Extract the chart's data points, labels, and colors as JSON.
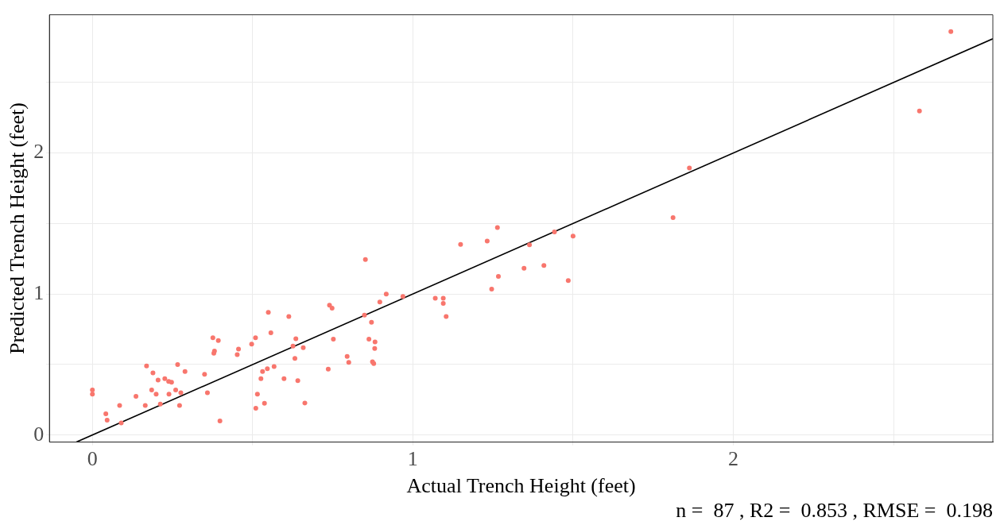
{
  "chart_data": {
    "type": "scatter",
    "xlabel": "Actual Trench Height (feet)",
    "ylabel": "Predicted Trench Height (feet)",
    "annotations": [
      "n =  87 , R2 =  0.853 , RMSE =  0.198"
    ],
    "xlim": [
      -0.134,
      2.81
    ],
    "ylim": [
      -0.05,
      2.98
    ],
    "xticks": [
      0,
      {
        "value": 0.5,
        "label": null
      },
      1,
      {
        "value": 1.5,
        "label": null
      },
      2,
      {
        "value": 2.5,
        "label": null
      }
    ],
    "yticks": [
      0,
      {
        "value": 0.5,
        "label": null
      },
      1,
      {
        "value": 1.5,
        "label": null
      },
      2,
      {
        "value": 2.5,
        "label": null
      }
    ],
    "grid": true,
    "series": [
      {
        "type": "scatter",
        "marker": "circle",
        "color": "#f8766d",
        "x": [
          0,
          0,
          0.042,
          0.046,
          0.085,
          0.09,
          0.136,
          0.165,
          0.169,
          0.185,
          0.189,
          0.199,
          0.205,
          0.212,
          0.226,
          0.238,
          0.247,
          0.239,
          0.26,
          0.266,
          0.272,
          0.276,
          0.289,
          0.35,
          0.359,
          0.376,
          0.393,
          0.381,
          0.379,
          0.398,
          0.452,
          0.456,
          0.497,
          0.509,
          0.51,
          0.515,
          0.526,
          0.531,
          0.537,
          0.546,
          0.557,
          0.567,
          0.598,
          0.626,
          0.632,
          0.635,
          0.641,
          0.658,
          0.663,
          0.549,
          0.613,
          0.74,
          0.748,
          0.752,
          0.736,
          0.795,
          0.8,
          0.852,
          0.849,
          0.871,
          0.863,
          0.882,
          0.881,
          0.874,
          0.878,
          0.897,
          0.917,
          0.969,
          1.07,
          1.095,
          1.095,
          1.104,
          1.149,
          1.232,
          1.264,
          1.246,
          1.267,
          1.347,
          1.364,
          1.409,
          1.442,
          1.5,
          1.485,
          1.863,
          1.812,
          2.581,
          2.679
        ],
        "values": [
          0.32,
          0.29,
          0.15,
          0.106,
          0.21,
          0.086,
          0.275,
          0.21,
          0.49,
          0.32,
          0.44,
          0.29,
          0.39,
          0.22,
          0.4,
          0.38,
          0.375,
          0.29,
          0.32,
          0.5,
          0.21,
          0.3,
          0.45,
          0.43,
          0.3,
          0.69,
          0.67,
          0.595,
          0.58,
          0.1,
          0.57,
          0.61,
          0.645,
          0.69,
          0.19,
          0.29,
          0.4,
          0.45,
          0.225,
          0.47,
          0.725,
          0.485,
          0.4,
          0.63,
          0.544,
          0.683,
          0.385,
          0.62,
          0.227,
          0.87,
          0.84,
          0.92,
          0.9,
          0.68,
          0.467,
          0.557,
          0.515,
          1.245,
          0.85,
          0.8,
          0.68,
          0.66,
          0.614,
          0.52,
          0.507,
          0.943,
          1.0,
          0.983,
          0.97,
          0.97,
          0.934,
          0.84,
          1.352,
          1.375,
          1.471,
          1.035,
          1.125,
          1.183,
          1.348,
          1.202,
          1.44,
          1.41,
          1.095,
          1.894,
          1.542,
          2.297,
          2.861
        ]
      },
      {
        "type": "line",
        "color": "#000000",
        "x": [
          -0.05,
          2.81
        ],
        "values": [
          -0.05,
          2.81
        ]
      }
    ]
  }
}
